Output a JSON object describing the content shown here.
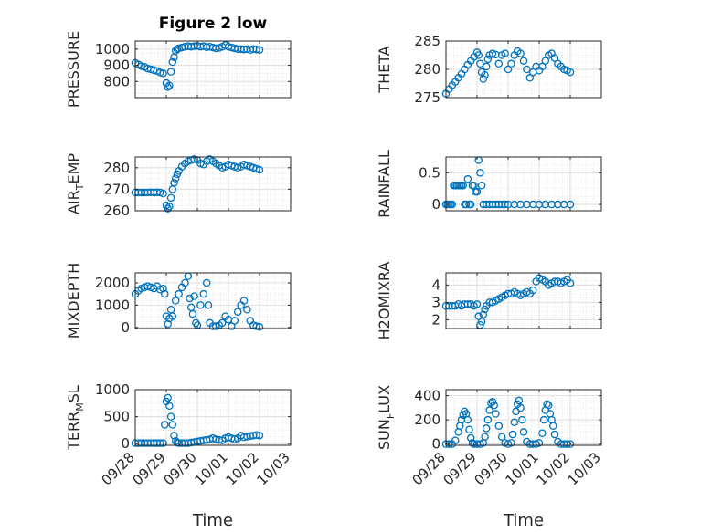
{
  "figure": {
    "title": "Figure 2 low",
    "marker_color": "#0072BD",
    "axis_color": "#262626",
    "grid_color": "#dfdfdf"
  },
  "chart_data": [
    {
      "type": "scatter",
      "id": "pressure",
      "ylabel": "PRESSURE",
      "ylabel_main": "PRESSURE",
      "ylabel_sub": "",
      "ylabel_tail": "",
      "title": "Figure 2 low",
      "xlabel": "",
      "xlim": [
        "09/28",
        "10/03"
      ],
      "ylim": [
        700,
        1050
      ],
      "yticks": [
        800,
        900,
        1000
      ],
      "xticks": [],
      "xtick_labels": [],
      "grid": true,
      "marker": "open-circle",
      "x": [
        0.0,
        0.1,
        0.2,
        0.3,
        0.4,
        0.5,
        0.6,
        0.7,
        0.8,
        0.9,
        1.0,
        1.05,
        1.1,
        1.15,
        1.2,
        1.25,
        1.3,
        1.35,
        1.4,
        1.5,
        1.6,
        1.7,
        1.8,
        1.9,
        2.0,
        2.1,
        2.2,
        2.3,
        2.4,
        2.5,
        2.6,
        2.7,
        2.8,
        2.9,
        3.0,
        3.1,
        3.2,
        3.3,
        3.4,
        3.5,
        3.6,
        3.7,
        3.8,
        3.9,
        4.0
      ],
      "y": [
        915,
        905,
        895,
        890,
        880,
        875,
        870,
        865,
        855,
        850,
        790,
        765,
        775,
        860,
        920,
        950,
        990,
        1000,
        1005,
        1010,
        1015,
        1018,
        1015,
        1018,
        1020,
        1015,
        1018,
        1012,
        1015,
        1010,
        1005,
        1008,
        1015,
        1025,
        1015,
        1010,
        1005,
        1000,
        1000,
        998,
        1000,
        995,
        1000,
        998,
        995
      ]
    },
    {
      "type": "scatter",
      "id": "theta",
      "ylabel": "THETA",
      "ylabel_main": "THETA",
      "ylabel_sub": "",
      "ylabel_tail": "",
      "xlabel": "",
      "xlim": [
        "09/28",
        "10/03"
      ],
      "ylim": [
        275,
        285
      ],
      "yticks": [
        275,
        280,
        285
      ],
      "xticks": [],
      "xtick_labels": [],
      "grid": true,
      "marker": "open-circle",
      "x": [
        0.0,
        0.1,
        0.2,
        0.3,
        0.4,
        0.5,
        0.6,
        0.7,
        0.8,
        0.9,
        1.0,
        1.05,
        1.1,
        1.15,
        1.2,
        1.25,
        1.3,
        1.35,
        1.4,
        1.5,
        1.6,
        1.7,
        1.8,
        1.9,
        2.0,
        2.1,
        2.2,
        2.3,
        2.4,
        2.5,
        2.6,
        2.7,
        2.8,
        2.9,
        3.0,
        3.1,
        3.2,
        3.3,
        3.4,
        3.5,
        3.6,
        3.7,
        3.8,
        3.9,
        4.0
      ],
      "y": [
        275.7,
        276.5,
        277.2,
        277.8,
        278.5,
        279.2,
        280.0,
        280.8,
        281.5,
        282.2,
        283.0,
        282.5,
        281.0,
        279.5,
        278.3,
        279.0,
        280.5,
        281.8,
        282.5,
        282.8,
        282.6,
        281.0,
        282.5,
        282.8,
        280.0,
        281.0,
        282.5,
        283.2,
        282.8,
        281.5,
        280.0,
        278.5,
        279.5,
        280.5,
        279.8,
        280.5,
        281.5,
        282.5,
        282.8,
        282.0,
        281.0,
        280.5,
        280.0,
        279.8,
        279.5
      ]
    },
    {
      "type": "scatter",
      "id": "air_temp",
      "ylabel": "AIR_TEMP",
      "ylabel_main": "AIR",
      "ylabel_sub": "T",
      "ylabel_tail": "EMP",
      "xlabel": "",
      "xlim": [
        "09/28",
        "10/03"
      ],
      "ylim": [
        260,
        285
      ],
      "yticks": [
        260,
        270,
        280
      ],
      "xticks": [],
      "xtick_labels": [],
      "grid": true,
      "marker": "open-circle",
      "x": [
        0.0,
        0.1,
        0.2,
        0.3,
        0.4,
        0.5,
        0.6,
        0.7,
        0.8,
        0.9,
        1.0,
        1.05,
        1.1,
        1.15,
        1.2,
        1.25,
        1.3,
        1.35,
        1.4,
        1.5,
        1.6,
        1.7,
        1.8,
        1.9,
        2.0,
        2.1,
        2.2,
        2.3,
        2.4,
        2.5,
        2.6,
        2.7,
        2.8,
        2.9,
        3.0,
        3.1,
        3.2,
        3.3,
        3.4,
        3.5,
        3.6,
        3.7,
        3.8,
        3.9,
        4.0
      ],
      "y": [
        268.5,
        268.5,
        268.5,
        268.5,
        268.5,
        268.6,
        268.5,
        268.6,
        268.5,
        268.0,
        262.5,
        261.0,
        262.0,
        266.0,
        270.0,
        273.0,
        275.0,
        277.0,
        278.5,
        280.5,
        282.0,
        283.0,
        283.5,
        284.0,
        283.5,
        282.0,
        281.5,
        283.0,
        284.0,
        283.0,
        282.0,
        281.0,
        280.0,
        280.5,
        281.5,
        281.0,
        280.5,
        280.0,
        280.5,
        281.5,
        281.0,
        280.5,
        280.0,
        279.5,
        279.0
      ]
    },
    {
      "type": "scatter",
      "id": "rainfall",
      "ylabel": "RAINFALL",
      "ylabel_main": "RAINFALL",
      "ylabel_sub": "",
      "ylabel_tail": "",
      "xlabel": "",
      "xlim": [
        "09/28",
        "10/03"
      ],
      "ylim": [
        -0.1,
        0.75
      ],
      "yticks": [
        0,
        0.5
      ],
      "xticks": [],
      "xtick_labels": [],
      "grid": true,
      "marker": "open-circle",
      "x": [
        0.0,
        0.05,
        0.1,
        0.15,
        0.2,
        0.25,
        0.3,
        0.35,
        0.4,
        0.45,
        0.5,
        0.55,
        0.6,
        0.65,
        0.7,
        0.75,
        0.8,
        0.85,
        0.9,
        0.95,
        1.0,
        1.05,
        1.1,
        1.15,
        1.2,
        1.3,
        1.4,
        1.5,
        1.6,
        1.7,
        1.8,
        1.9,
        2.0,
        2.2,
        2.4,
        2.6,
        2.8,
        3.0,
        3.2,
        3.4,
        3.6,
        3.8,
        4.0
      ],
      "y": [
        0,
        0,
        0,
        0,
        0,
        0.3,
        0.3,
        0.3,
        0.3,
        0.3,
        0.3,
        0.3,
        0,
        0,
        0.4,
        0,
        0,
        0.3,
        0.3,
        0.2,
        0.2,
        0.7,
        0.5,
        0.3,
        0,
        0,
        0,
        0,
        0,
        0,
        0,
        0,
        0,
        0,
        0,
        0,
        0,
        0,
        0,
        0,
        0,
        0,
        0
      ]
    },
    {
      "type": "scatter",
      "id": "mixdepth",
      "ylabel": "MIXDEPTH",
      "ylabel_main": "MIXDEPTH",
      "ylabel_sub": "",
      "ylabel_tail": "",
      "xlabel": "",
      "xlim": [
        "09/28",
        "10/03"
      ],
      "ylim": [
        -50,
        2450
      ],
      "yticks": [
        0,
        1000,
        2000
      ],
      "xticks": [],
      "xtick_labels": [],
      "grid": true,
      "marker": "open-circle",
      "x": [
        0.0,
        0.1,
        0.2,
        0.3,
        0.4,
        0.5,
        0.6,
        0.7,
        0.8,
        0.9,
        0.95,
        1.0,
        1.05,
        1.1,
        1.15,
        1.2,
        1.3,
        1.4,
        1.5,
        1.6,
        1.7,
        1.75,
        1.8,
        1.85,
        1.9,
        1.95,
        2.0,
        2.1,
        2.2,
        2.3,
        2.35,
        2.4,
        2.5,
        2.6,
        2.7,
        2.8,
        2.9,
        3.0,
        3.1,
        3.2,
        3.3,
        3.4,
        3.5,
        3.6,
        3.7,
        3.8,
        3.9,
        4.0
      ],
      "y": [
        1500,
        1650,
        1750,
        1800,
        1850,
        1800,
        1750,
        1850,
        1700,
        1750,
        1500,
        500,
        150,
        400,
        800,
        500,
        1200,
        1500,
        1800,
        2000,
        2300,
        1300,
        900,
        600,
        1400,
        200,
        100,
        1000,
        1500,
        2000,
        1000,
        200,
        50,
        50,
        100,
        200,
        500,
        350,
        50,
        300,
        700,
        1000,
        1200,
        800,
        300,
        100,
        50,
        20
      ]
    },
    {
      "type": "scatter",
      "id": "h2omixra",
      "ylabel": "H2OMIXRA",
      "ylabel_main": "H2OMIXRA",
      "ylabel_sub": "",
      "ylabel_tail": "",
      "xlabel": "",
      "xlim": [
        "09/28",
        "10/03"
      ],
      "ylim": [
        1.5,
        4.7
      ],
      "yticks": [
        2,
        3,
        4
      ],
      "xticks": [],
      "xtick_labels": [],
      "grid": true,
      "marker": "open-circle",
      "x": [
        0.0,
        0.1,
        0.2,
        0.3,
        0.4,
        0.5,
        0.6,
        0.7,
        0.8,
        0.9,
        1.0,
        1.05,
        1.1,
        1.15,
        1.2,
        1.25,
        1.3,
        1.4,
        1.5,
        1.6,
        1.7,
        1.8,
        1.9,
        2.0,
        2.1,
        2.2,
        2.3,
        2.4,
        2.5,
        2.6,
        2.7,
        2.8,
        2.9,
        3.0,
        3.1,
        3.2,
        3.3,
        3.4,
        3.5,
        3.6,
        3.7,
        3.8,
        3.9,
        4.0
      ],
      "y": [
        2.8,
        2.8,
        2.8,
        2.8,
        2.9,
        2.8,
        2.9,
        2.9,
        2.9,
        2.8,
        2.9,
        2.2,
        1.7,
        1.9,
        2.3,
        2.6,
        2.8,
        3.0,
        3.0,
        3.1,
        3.2,
        3.3,
        3.4,
        3.5,
        3.5,
        3.6,
        3.5,
        3.4,
        3.5,
        3.6,
        3.5,
        3.7,
        4.2,
        4.4,
        4.3,
        4.2,
        4.0,
        4.1,
        4.2,
        4.2,
        4.1,
        4.2,
        4.3,
        4.1
      ]
    },
    {
      "type": "scatter",
      "id": "terr_msl",
      "ylabel": "TERR_MSL",
      "ylabel_main": "TERR",
      "ylabel_sub": "M",
      "ylabel_tail": "SL",
      "xlabel": "Time",
      "xlim": [
        "09/28",
        "10/03"
      ],
      "ylim": [
        -30,
        1000
      ],
      "yticks": [
        0,
        500,
        1000
      ],
      "xticks": [
        0,
        1,
        2,
        3,
        4,
        5
      ],
      "xtick_labels": [
        "09/28",
        "09/29",
        "09/30",
        "10/01",
        "10/02",
        "10/03"
      ],
      "grid": true,
      "marker": "open-circle",
      "x": [
        0.0,
        0.1,
        0.2,
        0.3,
        0.4,
        0.5,
        0.6,
        0.7,
        0.8,
        0.9,
        0.95,
        1.0,
        1.05,
        1.1,
        1.15,
        1.2,
        1.25,
        1.3,
        1.35,
        1.4,
        1.5,
        1.6,
        1.7,
        1.8,
        1.9,
        2.0,
        2.1,
        2.2,
        2.3,
        2.4,
        2.5,
        2.6,
        2.7,
        2.8,
        2.9,
        3.0,
        3.1,
        3.2,
        3.3,
        3.4,
        3.5,
        3.6,
        3.7,
        3.8,
        3.9,
        4.0
      ],
      "y": [
        10,
        10,
        10,
        10,
        10,
        10,
        10,
        10,
        10,
        10,
        350,
        780,
        850,
        700,
        500,
        350,
        150,
        50,
        20,
        10,
        10,
        10,
        10,
        20,
        30,
        40,
        50,
        60,
        70,
        80,
        100,
        80,
        70,
        60,
        100,
        120,
        100,
        80,
        100,
        150,
        120,
        130,
        140,
        150,
        160,
        150
      ]
    },
    {
      "type": "scatter",
      "id": "sun_flux",
      "ylabel": "SUN_FLUX",
      "ylabel_main": "SUN",
      "ylabel_sub": "F",
      "ylabel_tail": "LUX",
      "xlabel": "Time",
      "xlim": [
        "09/28",
        "10/03"
      ],
      "ylim": [
        -10,
        450
      ],
      "yticks": [
        0,
        200,
        400
      ],
      "xticks": [
        0,
        1,
        2,
        3,
        4,
        5
      ],
      "xtick_labels": [
        "09/28",
        "09/29",
        "09/30",
        "10/01",
        "10/02",
        "10/03"
      ],
      "grid": true,
      "marker": "open-circle",
      "x": [
        0.0,
        0.1,
        0.2,
        0.3,
        0.4,
        0.45,
        0.5,
        0.55,
        0.6,
        0.65,
        0.7,
        0.75,
        0.8,
        0.85,
        0.9,
        1.0,
        1.1,
        1.2,
        1.25,
        1.3,
        1.35,
        1.4,
        1.45,
        1.5,
        1.55,
        1.6,
        1.7,
        1.8,
        1.9,
        2.0,
        2.1,
        2.15,
        2.2,
        2.25,
        2.3,
        2.35,
        2.4,
        2.45,
        2.5,
        2.6,
        2.7,
        2.8,
        2.9,
        3.0,
        3.1,
        3.15,
        3.2,
        3.25,
        3.3,
        3.35,
        3.4,
        3.45,
        3.5,
        3.6,
        3.7,
        3.8,
        3.9,
        4.0
      ],
      "y": [
        0,
        0,
        0,
        30,
        100,
        150,
        200,
        240,
        270,
        250,
        200,
        120,
        50,
        10,
        0,
        0,
        0,
        10,
        60,
        130,
        200,
        280,
        340,
        350,
        320,
        250,
        150,
        60,
        10,
        0,
        10,
        80,
        180,
        270,
        330,
        360,
        300,
        200,
        100,
        20,
        0,
        0,
        0,
        10,
        90,
        200,
        280,
        330,
        320,
        250,
        200,
        150,
        80,
        20,
        0,
        0,
        0,
        0
      ]
    }
  ]
}
